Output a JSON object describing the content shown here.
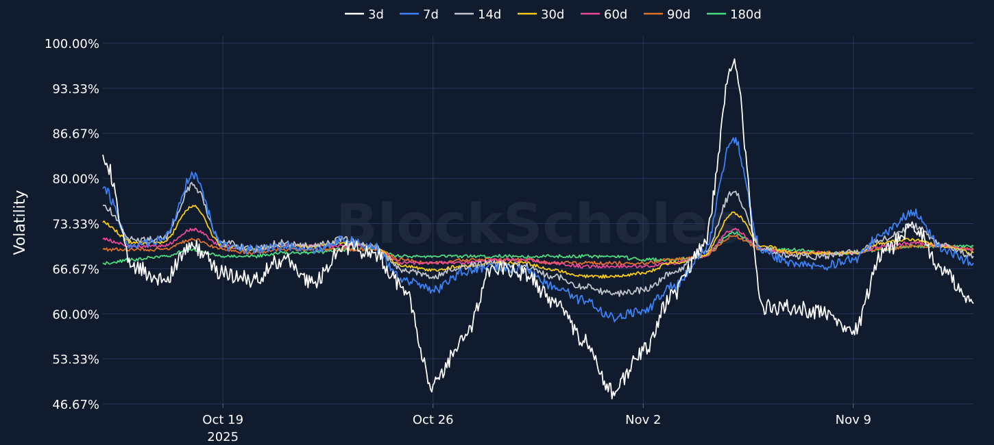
{
  "watermark": "BlockScholes",
  "chart_data": {
    "type": "line",
    "ylabel": "Volatility",
    "xlabel": "",
    "ylim": [
      46.67,
      100
    ],
    "yticks": [
      "100.00%",
      "93.33%",
      "86.67%",
      "80.00%",
      "73.33%",
      "66.67%",
      "60.00%",
      "53.33%",
      "46.67%"
    ],
    "xlim": [
      "2025-10-15",
      "2025-11-13"
    ],
    "xticks": [
      {
        "date": "2025-10-19",
        "label": "Oct 19",
        "sub": "2025"
      },
      {
        "date": "2025-10-26",
        "label": "Oct 26",
        "sub": ""
      },
      {
        "date": "2025-11-02",
        "label": "Nov 2",
        "sub": ""
      },
      {
        "date": "2025-11-09",
        "label": "Nov 9",
        "sub": ""
      }
    ],
    "grid": true,
    "legend_position": "top-center",
    "x": [
      "2025-10-15",
      "2025-10-16",
      "2025-10-17",
      "2025-10-18",
      "2025-10-19",
      "2025-10-20",
      "2025-10-21",
      "2025-10-22",
      "2025-10-23",
      "2025-10-24",
      "2025-10-25",
      "2025-10-26",
      "2025-10-27",
      "2025-10-28",
      "2025-10-29",
      "2025-10-30",
      "2025-10-31",
      "2025-11-01",
      "2025-11-02",
      "2025-11-03",
      "2025-11-04",
      "2025-11-05",
      "2025-11-06",
      "2025-11-07",
      "2025-11-08",
      "2025-11-09",
      "2025-11-10",
      "2025-11-11",
      "2025-11-12",
      "2025-11-13"
    ],
    "series": [
      {
        "name": "3d",
        "color": "#ffffff",
        "values": [
          83.5,
          67,
          65,
          70,
          66,
          65,
          68,
          64.5,
          70,
          69,
          64,
          49.5,
          56,
          67,
          66,
          62,
          56,
          48.5,
          54.5,
          63,
          70,
          97,
          61,
          61,
          60,
          57.5,
          69,
          73,
          66,
          61.5
        ]
      },
      {
        "name": "7d",
        "color": "#3b82f6",
        "values": [
          78.5,
          70,
          71,
          80.5,
          70,
          69.5,
          70,
          69.5,
          71,
          70,
          65,
          63.5,
          66,
          67,
          66.5,
          64,
          62,
          59.5,
          60.5,
          64,
          69,
          86,
          69,
          67.5,
          67,
          68,
          72,
          75,
          69.5,
          67.5
        ]
      },
      {
        "name": "14d",
        "color": "#c0c4cc",
        "values": [
          76,
          71,
          71,
          79,
          70.5,
          69.5,
          70.5,
          70,
          71,
          70,
          66.5,
          65.5,
          67,
          67.5,
          67,
          65.5,
          64,
          63,
          63.5,
          66,
          69,
          78,
          69.5,
          68.5,
          68.5,
          69,
          71,
          73,
          70,
          68.5
        ]
      },
      {
        "name": "30d",
        "color": "#facc15",
        "values": [
          73.5,
          70.5,
          70.5,
          76,
          70,
          69.5,
          70,
          70,
          70.5,
          70,
          67,
          66.5,
          67,
          67.5,
          67.5,
          66.5,
          65.5,
          65.5,
          66,
          67.5,
          68.5,
          75,
          70,
          69,
          69,
          69,
          70.5,
          71,
          70,
          69
        ]
      },
      {
        "name": "60d",
        "color": "#ec4899",
        "values": [
          71,
          70,
          70,
          72.5,
          70,
          69.5,
          70,
          70,
          70,
          70,
          67.5,
          67.5,
          67.5,
          68,
          68,
          67.5,
          67,
          67,
          67,
          67.5,
          68.5,
          72.5,
          69.5,
          69,
          69,
          69,
          70,
          70.5,
          70,
          69.5
        ]
      },
      {
        "name": "90d",
        "color": "#e0702a",
        "values": [
          69.5,
          69.5,
          69.5,
          71,
          69.5,
          69,
          69.5,
          69.5,
          69.5,
          69.5,
          68,
          67.5,
          68,
          68,
          68,
          67.5,
          67.5,
          67.5,
          67.5,
          68,
          68.5,
          71.5,
          69.5,
          69,
          69,
          69,
          69.5,
          70,
          70,
          69.5
        ]
      },
      {
        "name": "180d",
        "color": "#4ade80",
        "values": [
          67.5,
          68,
          68.5,
          69.5,
          68.5,
          68.5,
          69,
          69,
          69.5,
          69.5,
          68.5,
          68.5,
          68.5,
          68.5,
          68.5,
          68.5,
          68.5,
          68.5,
          68,
          68,
          68.5,
          72,
          69.5,
          69.5,
          69,
          69,
          69.5,
          70,
          70,
          70
        ]
      }
    ]
  }
}
